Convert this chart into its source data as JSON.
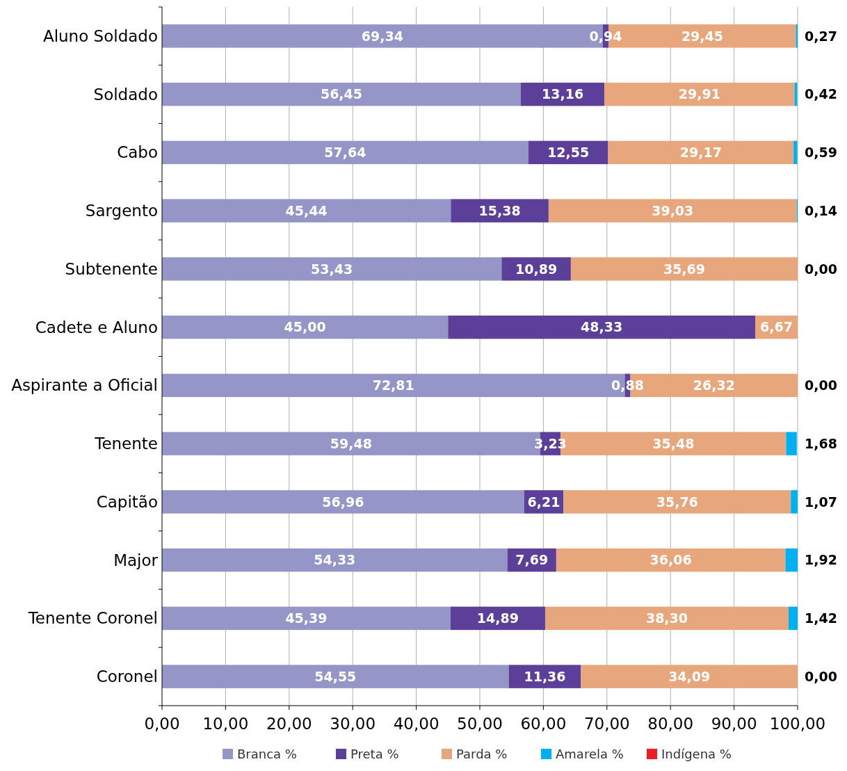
{
  "chart_data": {
    "type": "bar",
    "orientation": "horizontal",
    "stacked": true,
    "categories": [
      "Aluno Soldado",
      "Soldado",
      "Cabo",
      "Sargento",
      "Subtenente",
      "Cadete e Aluno",
      "Aspirante a Oficial",
      "Tenente",
      "Capitão",
      "Major",
      "Tenente Coronel",
      "Coronel"
    ],
    "series": [
      {
        "name": "Branca %",
        "color": "#9595c8",
        "values": [
          69.34,
          56.45,
          57.64,
          45.44,
          53.43,
          45.0,
          72.81,
          59.48,
          56.96,
          54.33,
          45.39,
          54.55
        ],
        "value_labels": [
          "69,34",
          "56,45",
          "57,64",
          "45,44",
          "53,43",
          "45,00",
          "72,81",
          "59,48",
          "56,96",
          "54,33",
          "45,39",
          "54,55"
        ]
      },
      {
        "name": "Preta %",
        "color": "#5c3f99",
        "values": [
          0.94,
          13.16,
          12.55,
          15.38,
          10.89,
          48.33,
          0.88,
          3.23,
          6.21,
          7.69,
          14.89,
          11.36
        ],
        "value_labels": [
          "0,94",
          "13,16",
          "12,55",
          "15,38",
          "10,89",
          "48,33",
          "0,88",
          "3,23",
          "6,21",
          "7,69",
          "14,89",
          "11,36"
        ]
      },
      {
        "name": "Parda %",
        "color": "#e8a67c",
        "values": [
          29.45,
          29.91,
          29.17,
          39.03,
          35.69,
          6.67,
          26.32,
          35.48,
          35.76,
          36.06,
          38.3,
          34.09
        ],
        "value_labels": [
          "29,45",
          "29,91",
          "29,17",
          "39,03",
          "35,69",
          "6,67",
          "26,32",
          "35,48",
          "35,76",
          "36,06",
          "38,30",
          "34,09"
        ]
      },
      {
        "name": "Amarela %",
        "color": "#00b0f0",
        "values": [
          0.27,
          0.42,
          0.59,
          0.14,
          0.0,
          0.0,
          0.0,
          1.68,
          1.07,
          1.92,
          1.42,
          0.0
        ],
        "value_labels": [
          "0,27",
          "0,42",
          "0,59",
          "0,14",
          "0,00",
          null,
          "0,00",
          "1,68",
          "1,07",
          "1,92",
          "1,42",
          "0,00"
        ]
      },
      {
        "name": "Indígena %",
        "color": "#ee1c25",
        "values": [
          0,
          0,
          0,
          0,
          0,
          0,
          0,
          0,
          0,
          0,
          0,
          0
        ]
      }
    ],
    "xlim": [
      0,
      100
    ],
    "xticks": [
      {
        "value": 0,
        "label": "0,00"
      },
      {
        "value": 10,
        "label": "10,00"
      },
      {
        "value": 20,
        "label": "20,00"
      },
      {
        "value": 30,
        "label": "30,00"
      },
      {
        "value": 40,
        "label": "40,00"
      },
      {
        "value": 50,
        "label": "50,00"
      },
      {
        "value": 60,
        "label": "60,00"
      },
      {
        "value": 70,
        "label": "70,00"
      },
      {
        "value": 80,
        "label": "80,00"
      },
      {
        "value": 90,
        "label": "90,00"
      },
      {
        "value": 100,
        "label": "100,00"
      }
    ],
    "grid": "x",
    "legend": "bottom"
  }
}
